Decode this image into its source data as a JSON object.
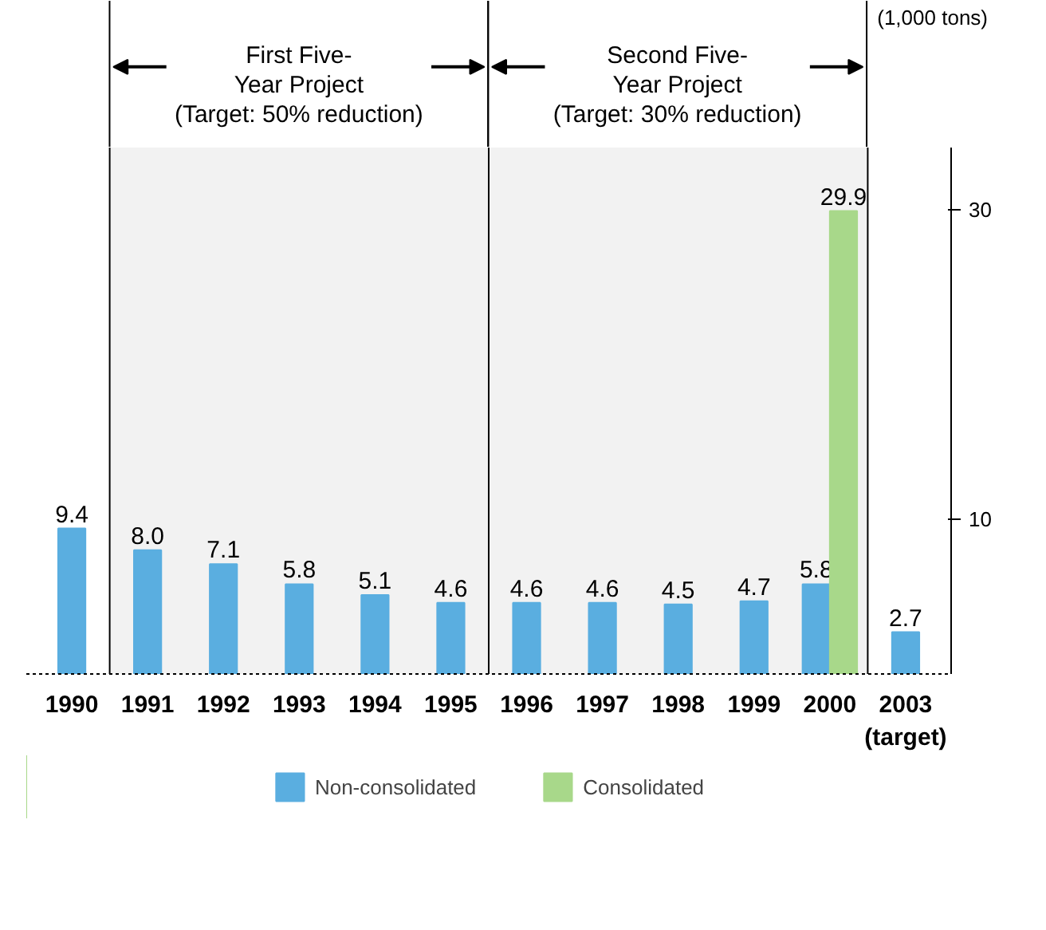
{
  "chart_data": {
    "type": "bar",
    "categories": [
      "1990",
      "1991",
      "1992",
      "1993",
      "1994",
      "1995",
      "1996",
      "1997",
      "1998",
      "1999",
      "2000",
      "2003\n(target)"
    ],
    "series": [
      {
        "name": "Non-consolidated",
        "color": "#5aaee0",
        "values": [
          9.4,
          8.0,
          7.1,
          5.8,
          5.1,
          4.6,
          4.6,
          4.6,
          4.5,
          4.7,
          5.8,
          2.7
        ],
        "value_labels": [
          "9.4",
          "8.0",
          "7.1",
          "5.8",
          "5.1",
          "4.6",
          "4.6",
          "4.6",
          "4.5",
          "4.7",
          "5.8",
          "2.7"
        ]
      },
      {
        "name": "Consolidated",
        "color": "#a8d88a",
        "values": [
          null,
          null,
          null,
          null,
          null,
          null,
          null,
          null,
          null,
          null,
          29.9,
          null
        ],
        "value_labels": [
          null,
          null,
          null,
          null,
          null,
          null,
          null,
          null,
          null,
          null,
          "29.9",
          null
        ]
      }
    ],
    "ylim": [
      0,
      34
    ],
    "yticks": [
      10,
      30
    ],
    "grid": false,
    "legend": "bottom",
    "bands": [
      {
        "axis": "x",
        "from": "1991",
        "to": "1995",
        "label": "First Five-\nYear Project\n(Target: 50% reduction)"
      },
      {
        "axis": "x",
        "from": "1996",
        "to": "2000",
        "label": "Second Five-\nYear Project\n(Target: 30% reduction)"
      }
    ],
    "annotations": [
      "(1,000 tons)"
    ]
  }
}
